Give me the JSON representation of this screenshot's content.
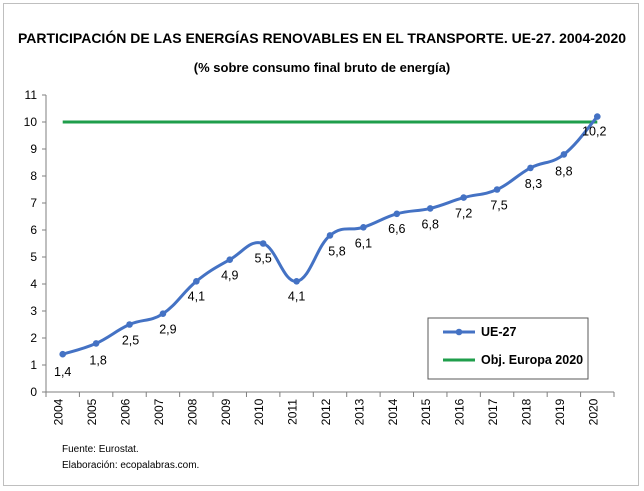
{
  "chart_data": {
    "type": "line",
    "title": "PARTICIPACIÓN DE LAS ENERGÍAS RENOVABLES EN EL TRANSPORTE. UE-27. 2004-2020",
    "subtitle": "(% sobre consumo final bruto de energía)",
    "xlabel": "",
    "ylabel": "",
    "ylim": [
      0,
      11
    ],
    "yticks": [
      "0",
      "1",
      "2",
      "3",
      "4",
      "5",
      "6",
      "7",
      "8",
      "9",
      "10",
      "11"
    ],
    "categories": [
      "2004",
      "2005",
      "2006",
      "2007",
      "2008",
      "2009",
      "2010",
      "2011",
      "2012",
      "2013",
      "2014",
      "2015",
      "2016",
      "2017",
      "2018",
      "2019",
      "2020"
    ],
    "series": [
      {
        "name": "UE-27",
        "color": "#4472c4",
        "values": [
          1.4,
          1.8,
          2.5,
          2.9,
          4.1,
          4.9,
          5.5,
          4.1,
          5.8,
          6.1,
          6.6,
          6.8,
          7.2,
          7.5,
          8.3,
          8.8,
          10.2
        ],
        "labels": [
          "1,4",
          "1,8",
          "2,5",
          "2,9",
          "4,1",
          "4,9",
          "5,5",
          "4,1",
          "5,8",
          "6,1",
          "6,6",
          "6,8",
          "7,2",
          "7,5",
          "8,3",
          "8,8",
          "10,2"
        ]
      },
      {
        "name": "Obj. Europa 2020",
        "color": "#1f9e4b",
        "values": [
          10,
          10,
          10,
          10,
          10,
          10,
          10,
          10,
          10,
          10,
          10,
          10,
          10,
          10,
          10,
          10,
          10
        ]
      }
    ],
    "legend": "bottom-right",
    "grid": false
  },
  "notes": {
    "source": "Fuente: Eurostat.",
    "credit": "Elaboración: ecopalabras.com."
  }
}
